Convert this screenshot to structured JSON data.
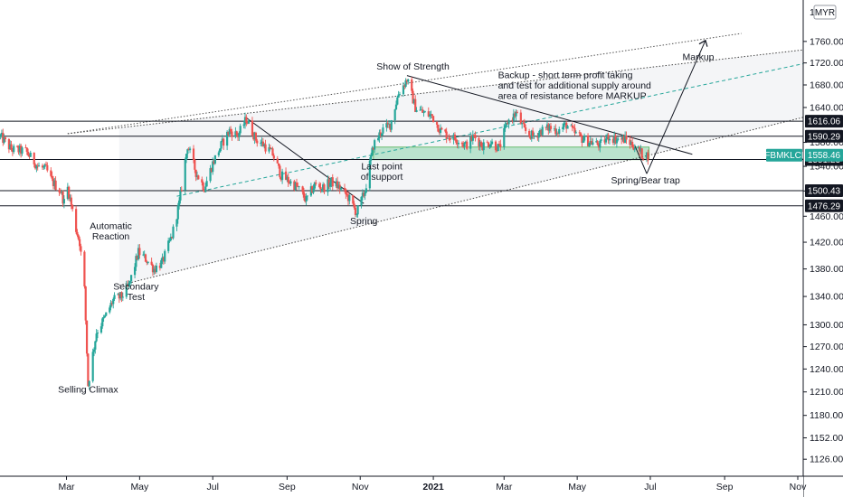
{
  "chart_data": {
    "type": "candlestick",
    "symbol": "FBMKLCI",
    "currency": "MYR",
    "ylim": [
      1110,
      1815
    ],
    "yscale": "log",
    "y_ticks": [
      1126,
      1152,
      1180,
      1210,
      1240,
      1270,
      1300,
      1340,
      1380,
      1420,
      1460,
      1500,
      1540,
      1580,
      1640,
      1680,
      1720,
      1760
    ],
    "y_tick_labels": [
      "1126.00",
      "1152.00",
      "1180.00",
      "1210.00",
      "1240.00",
      "1270.00",
      "1300.00",
      "1340.00",
      "1380.00",
      "1420.00",
      "1460.00",
      "1500.00",
      "1540.00",
      "1580.00",
      "1640.00",
      "1680.00",
      "1720.00",
      "1760.00"
    ],
    "x_ticks": [
      "Mar",
      "May",
      "Jul",
      "Sep",
      "Nov",
      "2021",
      "Mar",
      "May",
      "Jul",
      "Sep",
      "Nov"
    ],
    "levels": [
      {
        "value": 1616.06,
        "label": "1616.06"
      },
      {
        "value": 1590.29,
        "label": "1590.29"
      },
      {
        "value": 1551.23,
        "label": "1551.23"
      },
      {
        "value": 1500.43,
        "label": "1500.43"
      },
      {
        "value": 1476.29,
        "label": "1476.29"
      }
    ],
    "last_price": {
      "value": 1558.46,
      "label": "1558.46"
    },
    "support_zone": [
      1551,
      1572
    ],
    "price_path": [
      [
        "2020-01-06",
        1590
      ],
      [
        "2020-01-15",
        1568
      ],
      [
        "2020-01-27",
        1565
      ],
      [
        "2020-02-06",
        1540
      ],
      [
        "2020-02-13",
        1535
      ],
      [
        "2020-02-18",
        1515
      ],
      [
        "2020-02-25",
        1500
      ],
      [
        "2020-02-28",
        1482
      ],
      [
        "2020-03-02",
        1505
      ],
      [
        "2020-03-05",
        1478
      ],
      [
        "2020-03-09",
        1440
      ],
      [
        "2020-03-12",
        1420
      ],
      [
        "2020-03-16",
        1350
      ],
      [
        "2020-03-19",
        1219
      ],
      [
        "2020-03-23",
        1260
      ],
      [
        "2020-03-26",
        1290
      ],
      [
        "2020-04-02",
        1310
      ],
      [
        "2020-04-09",
        1335
      ],
      [
        "2020-04-16",
        1340
      ],
      [
        "2020-04-22",
        1355
      ],
      [
        "2020-04-30",
        1405
      ],
      [
        "2020-05-06",
        1395
      ],
      [
        "2020-05-13",
        1380
      ],
      [
        "2020-05-20",
        1390
      ],
      [
        "2020-05-28",
        1430
      ],
      [
        "2020-06-03",
        1480
      ],
      [
        "2020-06-10",
        1575
      ],
      [
        "2020-06-17",
        1530
      ],
      [
        "2020-06-24",
        1505
      ],
      [
        "2020-07-01",
        1545
      ],
      [
        "2020-07-08",
        1575
      ],
      [
        "2020-07-15",
        1600
      ],
      [
        "2020-07-22",
        1592
      ],
      [
        "2020-07-29",
        1620
      ],
      [
        "2020-08-06",
        1585
      ],
      [
        "2020-08-13",
        1575
      ],
      [
        "2020-08-20",
        1560
      ],
      [
        "2020-08-27",
        1525
      ],
      [
        "2020-09-03",
        1515
      ],
      [
        "2020-09-10",
        1505
      ],
      [
        "2020-09-17",
        1485
      ],
      [
        "2020-09-24",
        1510
      ],
      [
        "2020-10-01",
        1505
      ],
      [
        "2020-10-08",
        1515
      ],
      [
        "2020-10-15",
        1505
      ],
      [
        "2020-10-22",
        1490
      ],
      [
        "2020-10-29",
        1465
      ],
      [
        "2020-11-05",
        1500
      ],
      [
        "2020-11-12",
        1575
      ],
      [
        "2020-11-19",
        1600
      ],
      [
        "2020-11-26",
        1610
      ],
      [
        "2020-12-03",
        1665
      ],
      [
        "2020-12-10",
        1690
      ],
      [
        "2020-12-17",
        1640
      ],
      [
        "2020-12-24",
        1630
      ],
      [
        "2020-12-31",
        1625
      ],
      [
        "2021-01-07",
        1600
      ],
      [
        "2021-01-14",
        1590
      ],
      [
        "2021-01-21",
        1585
      ],
      [
        "2021-01-28",
        1575
      ],
      [
        "2021-02-04",
        1590
      ],
      [
        "2021-02-11",
        1575
      ],
      [
        "2021-02-18",
        1580
      ],
      [
        "2021-02-25",
        1570
      ],
      [
        "2021-03-04",
        1615
      ],
      [
        "2021-03-11",
        1630
      ],
      [
        "2021-03-18",
        1600
      ],
      [
        "2021-03-25",
        1590
      ],
      [
        "2021-04-01",
        1600
      ],
      [
        "2021-04-08",
        1605
      ],
      [
        "2021-04-15",
        1600
      ],
      [
        "2021-04-22",
        1610
      ],
      [
        "2021-04-29",
        1595
      ],
      [
        "2021-05-06",
        1585
      ],
      [
        "2021-05-13",
        1580
      ],
      [
        "2021-05-20",
        1575
      ],
      [
        "2021-05-27",
        1590
      ],
      [
        "2021-06-03",
        1585
      ],
      [
        "2021-06-10",
        1585
      ],
      [
        "2021-06-17",
        1575
      ],
      [
        "2021-06-24",
        1560
      ],
      [
        "2021-06-29",
        1558
      ]
    ],
    "annotations": [
      {
        "text": [
          "Selling Climax"
        ],
        "date": "2020-03-19",
        "price": 1209
      },
      {
        "text": [
          "Automatic",
          "Reaction"
        ],
        "date": "2020-04-07",
        "price": 1440
      },
      {
        "text": [
          "Secondary",
          "Test"
        ],
        "date": "2020-04-28",
        "price": 1350
      },
      {
        "text": [
          "Spring"
        ],
        "date": "2020-11-04",
        "price": 1448
      },
      {
        "text": [
          "Last point",
          "of support"
        ],
        "date": "2020-11-19",
        "price": 1535
      },
      {
        "text": [
          "Show of Strength"
        ],
        "date": "2020-12-15",
        "price": 1708
      },
      {
        "text": [
          "Backup - short term profit taking",
          "and test for additional supply around",
          "area of resistance before MARKUP"
        ],
        "date": "2021-03-02",
        "price": 1692
      },
      {
        "text": [
          "Markup"
        ],
        "date": "2021-08-10",
        "price": 1725
      },
      {
        "text": [
          "Spring/Bear trap"
        ],
        "date": "2021-06-27",
        "price": 1512
      }
    ]
  }
}
